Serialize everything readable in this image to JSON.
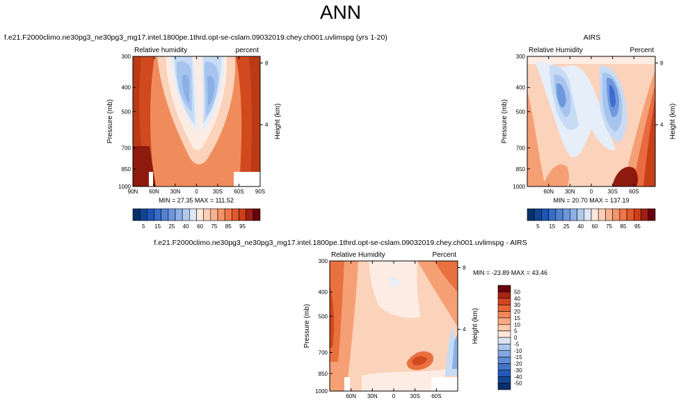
{
  "page": {
    "title": "ANN",
    "colors": {
      "low": "#08306b",
      "mid": "#ffffff",
      "high": "#67000d"
    }
  },
  "chart_data": [
    {
      "type": "heatmap",
      "panel": "model",
      "title": "f.e21.F2000climo.ne30pg3_ne30pg3_mg17.intel.1800pe.1thrd.opt-se-cslam.09032019.chey.ch001.uvlimspg (yrs 1-20)",
      "left_label": "Relative humidity",
      "right_label": "percent",
      "ylabel": "Pressure (mb)",
      "ylabel_right": "Height (km)",
      "x_ticks": [
        "90N",
        "60N",
        "30N",
        "0",
        "30S",
        "60S",
        "90S"
      ],
      "x_tick_values": [
        90,
        60,
        30,
        0,
        -30,
        -60,
        -90
      ],
      "xlim": [
        90,
        -90
      ],
      "y_ticks": [
        "300",
        "400",
        "500",
        "700",
        "850",
        "1000"
      ],
      "y_tick_values": [
        300,
        400,
        500,
        700,
        850,
        1000
      ],
      "ylim": [
        300,
        1000
      ],
      "y_scale": "log",
      "height_ticks": [
        "8",
        "4"
      ],
      "height_tick_values": [
        8,
        4
      ],
      "stats": "MIN = 27.35  MAX = 111.52",
      "colorbar": {
        "orientation": "horizontal",
        "labels": [
          "5",
          "15",
          "25",
          "40",
          "60",
          "75",
          "85",
          "95"
        ]
      }
    },
    {
      "type": "heatmap",
      "panel": "obs",
      "title": "AIRS",
      "left_label": "Relative Humidity",
      "right_label": "Percent",
      "ylabel": "Pressure (mb)",
      "ylabel_right": "Height (km)",
      "x_ticks": [
        "60N",
        "30N",
        "0",
        "30S",
        "60S"
      ],
      "x_tick_values": [
        60,
        30,
        0,
        -30,
        -60
      ],
      "xlim": [
        90,
        -90
      ],
      "y_ticks": [
        "300",
        "400",
        "500",
        "700",
        "850",
        "1000"
      ],
      "y_tick_values": [
        300,
        400,
        500,
        700,
        850,
        1000
      ],
      "ylim": [
        300,
        1000
      ],
      "y_scale": "log",
      "height_ticks": [
        "8",
        "4"
      ],
      "height_tick_values": [
        8,
        4
      ],
      "stats": "MIN = 20.70  MAX = 137.19",
      "colorbar": {
        "orientation": "horizontal",
        "labels": [
          "5",
          "15",
          "25",
          "40",
          "60",
          "75",
          "85",
          "95"
        ]
      }
    },
    {
      "type": "heatmap",
      "panel": "diff",
      "title": "f.e21.F2000climo.ne30pg3_ne30pg3_mg17.intel.1800pe.1thrd.opt-se-cslam.09032019.chey.ch001.uvlimspg - AIRS",
      "left_label": "Relative Humidity",
      "right_label": "Percent",
      "ylabel": "Pressure (mb)",
      "ylabel_right": "Height (km)",
      "x_ticks": [
        "60N",
        "30N",
        "0",
        "30S",
        "60S"
      ],
      "x_tick_values": [
        60,
        30,
        0,
        -30,
        -60
      ],
      "xlim": [
        90,
        -90
      ],
      "y_ticks": [
        "300",
        "400",
        "500",
        "700",
        "850",
        "1000"
      ],
      "y_tick_values": [
        300,
        400,
        500,
        700,
        850,
        1000
      ],
      "ylim": [
        300,
        1000
      ],
      "y_scale": "log",
      "height_ticks": [
        "8",
        "4"
      ],
      "height_tick_values": [
        8,
        4
      ],
      "stats": "MIN = -23.89  MAX = 43.46",
      "colorbar": {
        "orientation": "vertical",
        "labels": [
          "50",
          "40",
          "30",
          "20",
          "15",
          "10",
          "5",
          "0",
          "-5",
          "-10",
          "-15",
          "-20",
          "-30",
          "-40",
          "-50"
        ]
      }
    }
  ]
}
